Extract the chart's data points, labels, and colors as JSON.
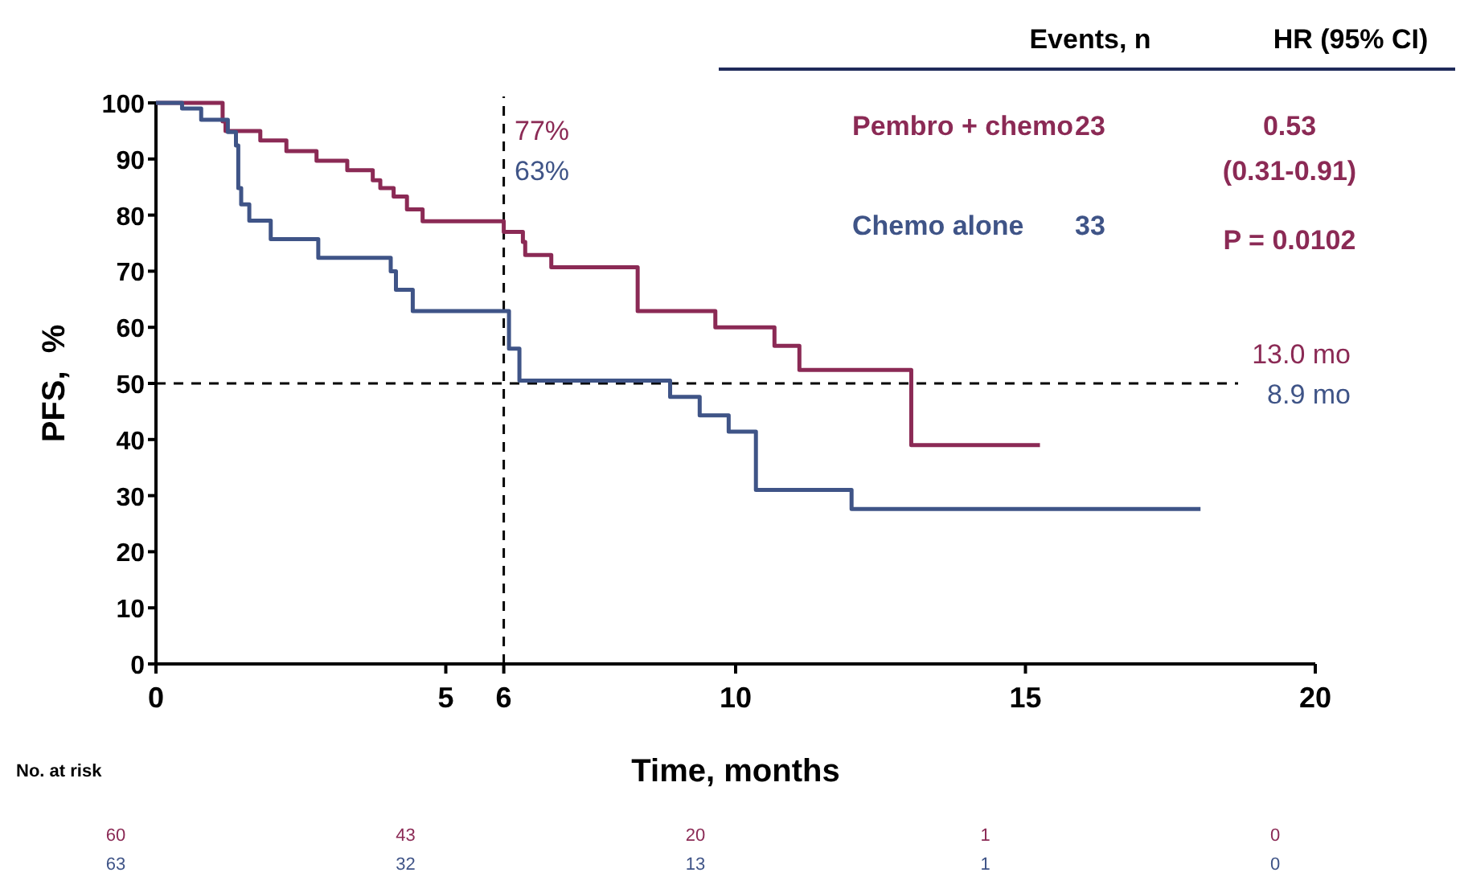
{
  "chart_data": {
    "type": "step",
    "xlabel": "Time, months",
    "ylabel": "PFS,  %",
    "xlim": [
      0,
      20
    ],
    "xticks": [
      0,
      5,
      6,
      10,
      15,
      20
    ],
    "ylim": [
      0,
      100
    ],
    "yticks": [
      0,
      10,
      20,
      30,
      40,
      50,
      60,
      70,
      80,
      90,
      100
    ],
    "grid": false,
    "legend": "top right",
    "legend_title": "Events, n",
    "series": [
      {
        "name": "Pembro + chemo",
        "color": "#8b2a55",
        "x": [
          0,
          1.15,
          1.2,
          1.8,
          2.25,
          2.77,
          3.3,
          3.74,
          3.87,
          4.1,
          4.33,
          4.6,
          6.0,
          6.33,
          6.37,
          6.82,
          8.31,
          9.65,
          10.67,
          11.1,
          13.03,
          15.25
        ],
        "values": [
          100,
          96.7,
          95,
          93.3,
          91.4,
          89.7,
          88,
          86.2,
          84.8,
          83.3,
          81,
          78.9,
          77,
          75.2,
          72.9,
          70.7,
          62.9,
          60,
          56.7,
          52.4,
          39,
          39
        ]
      },
      {
        "name": "Chemo alone",
        "color": "#3f5487",
        "x": [
          0,
          0.45,
          0.78,
          1.24,
          1.38,
          1.42,
          1.47,
          1.61,
          1.98,
          2.8,
          4.05,
          4.14,
          4.43,
          6.09,
          6.27,
          8.87,
          9.38,
          9.88,
          10.35,
          12.0,
          18.02
        ],
        "values": [
          100,
          99,
          97,
          94.8,
          92.4,
          84.8,
          81.9,
          79,
          75.7,
          72.4,
          70,
          66.7,
          62.9,
          56.2,
          50.5,
          47.6,
          44.3,
          41.4,
          31,
          27.6,
          27.6
        ]
      }
    ],
    "ref_lines": [
      {
        "axis": "x",
        "value": 6,
        "line_style": "dashed"
      },
      {
        "axis": "y",
        "value": 50,
        "line_style": "dashed"
      }
    ],
    "annotations": [
      "77%",
      "63%",
      "13.0 mo",
      "8.9 mo",
      "HR (95% CI)",
      "23",
      "33",
      "0.53",
      "(0.31-0.91)",
      "P = 0.0102",
      "No. at risk",
      "60",
      "43",
      "20",
      "1",
      "0",
      "63",
      "32",
      "13",
      "1",
      "0"
    ]
  }
}
